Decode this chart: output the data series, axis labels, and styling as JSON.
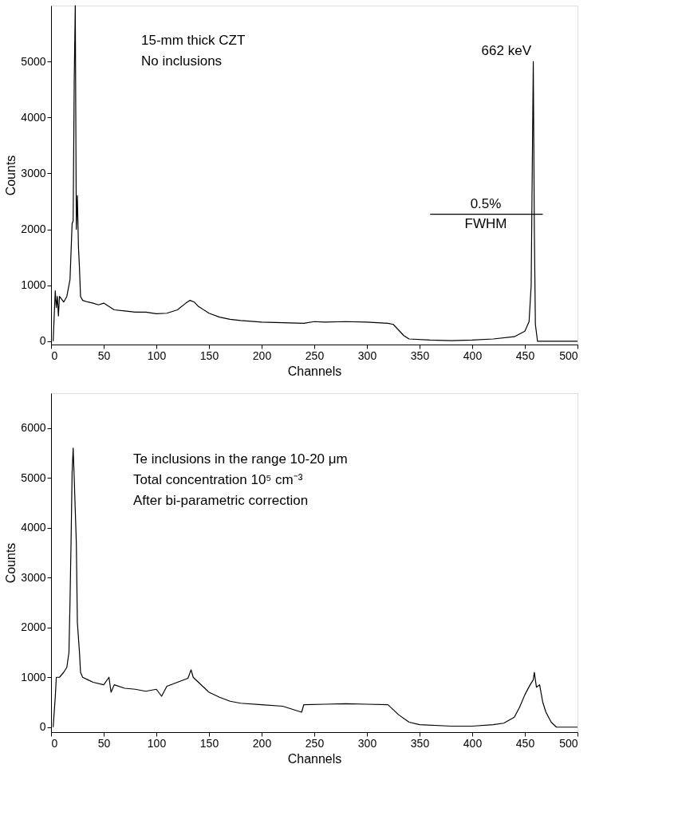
{
  "chart_data": [
    {
      "type": "line",
      "xlabel": "Channels",
      "ylabel": "Counts",
      "xlim": [
        0,
        500
      ],
      "ylim": [
        -60,
        6000
      ],
      "xticks": [
        0,
        50,
        100,
        150,
        200,
        250,
        300,
        350,
        400,
        450,
        500
      ],
      "yticks": [
        0,
        1000,
        2000,
        3000,
        4000,
        5000
      ],
      "grid": false,
      "annotations": [
        "15-mm thick CZT",
        "No inclusions",
        "662 keV",
        "0.5%",
        "FWHM"
      ],
      "series": [
        {
          "color": "#000000",
          "x": [
            2,
            4,
            5,
            6,
            7,
            8,
            10,
            12,
            15,
            18,
            20,
            21,
            22,
            23,
            24,
            25,
            26,
            27,
            28,
            30,
            35,
            40,
            45,
            50,
            55,
            60,
            70,
            80,
            90,
            100,
            110,
            120,
            128,
            132,
            136,
            140,
            150,
            160,
            170,
            180,
            200,
            220,
            240,
            250,
            260,
            280,
            300,
            320,
            325,
            330,
            335,
            340,
            360,
            380,
            400,
            420,
            440,
            450,
            454,
            456,
            457,
            458,
            459,
            460,
            462,
            470,
            500
          ],
          "values": [
            0,
            900,
            600,
            800,
            450,
            800,
            750,
            700,
            800,
            1100,
            2100,
            2150,
            4650,
            6000,
            2000,
            2600,
            1700,
            1300,
            800,
            730,
            700,
            680,
            650,
            680,
            620,
            560,
            540,
            520,
            520,
            490,
            500,
            560,
            680,
            730,
            700,
            620,
            500,
            430,
            390,
            370,
            340,
            330,
            320,
            350,
            340,
            350,
            340,
            320,
            300,
            200,
            100,
            40,
            20,
            10,
            20,
            40,
            80,
            180,
            350,
            1000,
            3000,
            5000,
            2000,
            300,
            0,
            0,
            0
          ]
        },
        {
          "type": "line",
          "color": "#000000",
          "x": [
            360,
            467
          ],
          "values": [
            2270,
            2270
          ]
        }
      ]
    },
    {
      "type": "line",
      "xlabel": "Channels",
      "ylabel": "Counts",
      "xlim": [
        0,
        500
      ],
      "ylim": [
        -100,
        6700
      ],
      "xticks": [
        0,
        50,
        100,
        150,
        200,
        250,
        300,
        350,
        400,
        450,
        500
      ],
      "yticks": [
        0,
        1000,
        2000,
        3000,
        4000,
        5000,
        6000
      ],
      "grid": false,
      "annotations": [
        "Te inclusions in the range 10-20 μm",
        "Total concentration 10⁵ cm⁻³",
        "After bi-parametric correction"
      ],
      "series": [
        {
          "color": "#000000",
          "x": [
            2,
            4,
            5,
            8,
            12,
            15,
            17,
            18,
            19,
            20,
            21,
            22,
            24,
            25,
            27,
            28,
            30,
            35,
            40,
            50,
            55,
            57,
            60,
            70,
            80,
            90,
            100,
            105,
            110,
            120,
            130,
            133,
            135,
            140,
            150,
            160,
            170,
            180,
            200,
            220,
            238,
            240,
            260,
            280,
            300,
            320,
            325,
            330,
            340,
            350,
            380,
            400,
            420,
            430,
            440,
            445,
            450,
            455,
            458,
            459,
            461,
            464,
            467,
            470,
            475,
            480,
            500
          ],
          "values": [
            0,
            600,
            1000,
            1000,
            1100,
            1200,
            1500,
            2500,
            3700,
            5100,
            5600,
            5000,
            3700,
            2100,
            1500,
            1100,
            1000,
            950,
            900,
            850,
            1000,
            700,
            850,
            780,
            760,
            720,
            760,
            620,
            820,
            900,
            980,
            1150,
            1000,
            900,
            700,
            600,
            520,
            480,
            450,
            420,
            300,
            450,
            460,
            470,
            460,
            450,
            350,
            250,
            100,
            50,
            20,
            20,
            50,
            80,
            200,
            400,
            650,
            850,
            950,
            1100,
            800,
            850,
            500,
            300,
            100,
            0,
            0
          ]
        }
      ]
    }
  ]
}
